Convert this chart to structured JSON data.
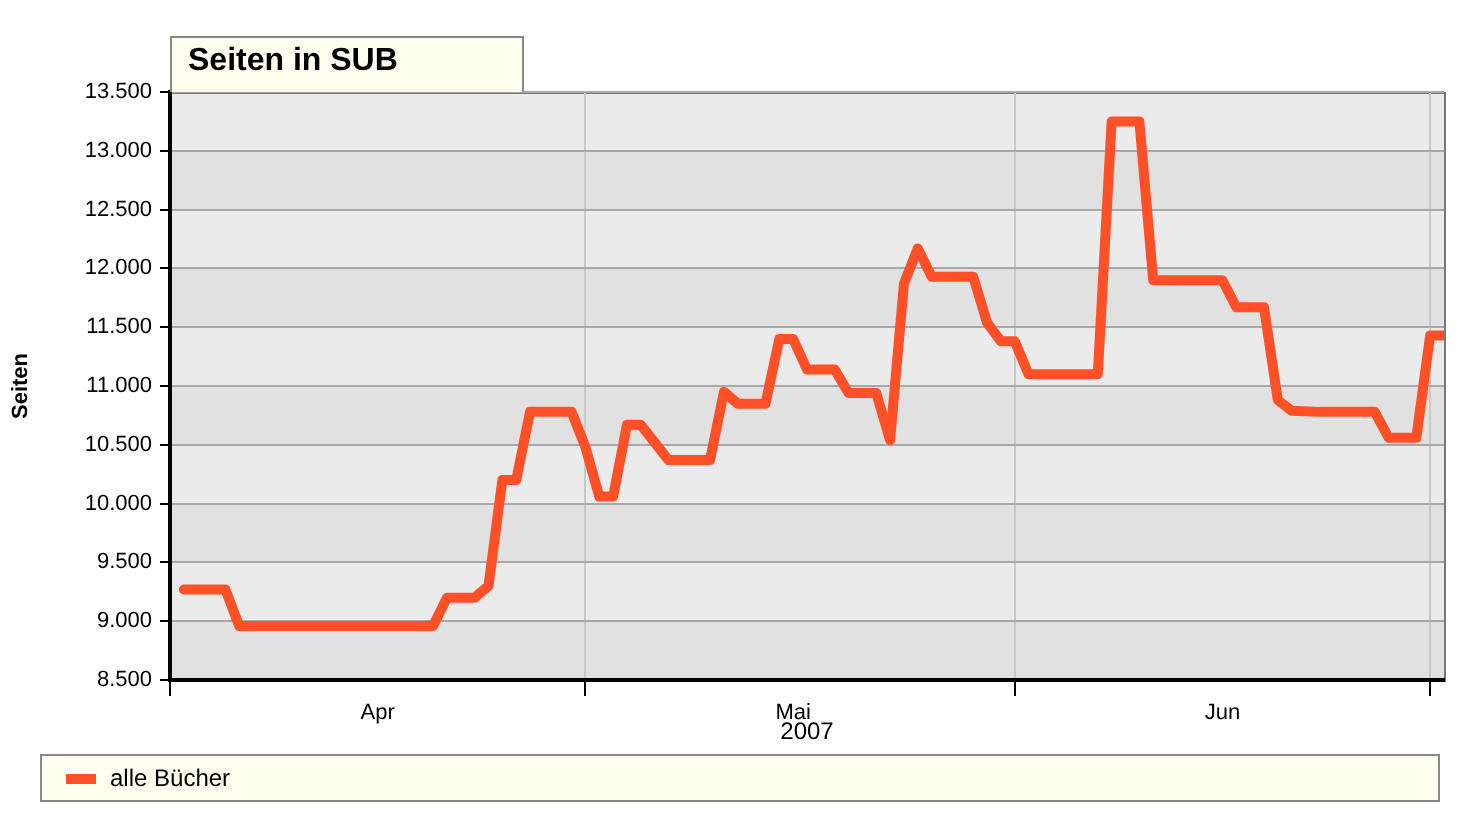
{
  "chart_data": {
    "type": "line",
    "title": "Seiten in SUB",
    "ylabel": "Seiten",
    "x": [
      "2007-04-02",
      "2007-04-05",
      "2007-04-06",
      "2007-04-20",
      "2007-04-21",
      "2007-04-23",
      "2007-04-24",
      "2007-04-25",
      "2007-04-26",
      "2007-04-27",
      "2007-04-30",
      "2007-05-01",
      "2007-05-02",
      "2007-05-03",
      "2007-05-04",
      "2007-05-05",
      "2007-05-07",
      "2007-05-10",
      "2007-05-11",
      "2007-05-12",
      "2007-05-14",
      "2007-05-15",
      "2007-05-16",
      "2007-05-17",
      "2007-05-19",
      "2007-05-20",
      "2007-05-22",
      "2007-05-23",
      "2007-05-24",
      "2007-05-25",
      "2007-05-26",
      "2007-05-29",
      "2007-05-30",
      "2007-05-31",
      "2007-06-01",
      "2007-06-02",
      "2007-06-07",
      "2007-06-08",
      "2007-06-10",
      "2007-06-11",
      "2007-06-16",
      "2007-06-17",
      "2007-06-19",
      "2007-06-20",
      "2007-06-21",
      "2007-06-23",
      "2007-06-27",
      "2007-06-28",
      "2007-06-30",
      "2007-07-01",
      "2007-07-02"
    ],
    "series": [
      {
        "name": "alle Bücher",
        "color": "#ff5028",
        "values": [
          9270,
          9270,
          8960,
          8960,
          9200,
          9200,
          9300,
          10200,
          10200,
          10780,
          10780,
          10480,
          10060,
          10060,
          10670,
          10670,
          10370,
          10370,
          10950,
          10850,
          10850,
          11400,
          11400,
          11140,
          11140,
          10940,
          10940,
          10540,
          11870,
          12170,
          11930,
          11930,
          11540,
          11380,
          11380,
          11100,
          11100,
          13250,
          13250,
          11900,
          11900,
          11670,
          11670,
          10880,
          10790,
          10780,
          10780,
          10560,
          10560,
          11430,
          11430
        ]
      }
    ],
    "xlim": [
      "2007-04-01",
      "2007-07-02"
    ],
    "xticks": [
      {
        "value": "2007-04-01",
        "label": null
      },
      {
        "value": "2007-04-16",
        "label": "Apr"
      },
      {
        "value": "2007-05-01",
        "label": null
      },
      {
        "value": "2007-05-16",
        "label": "Mai"
      },
      {
        "value": "2007-06-01",
        "label": null
      },
      {
        "value": "2007-06-16",
        "label": "Jun"
      },
      {
        "value": "2007-07-01",
        "label": null
      }
    ],
    "ylim": [
      8500,
      13500
    ],
    "yticks": [
      {
        "value": 8500,
        "label": "8.500"
      },
      {
        "value": 9000,
        "label": "9.000"
      },
      {
        "value": 9500,
        "label": "9.500"
      },
      {
        "value": 10000,
        "label": "10.000"
      },
      {
        "value": 10500,
        "label": "10.500"
      },
      {
        "value": 11000,
        "label": "11.000"
      },
      {
        "value": 11500,
        "label": "11.500"
      },
      {
        "value": 12000,
        "label": "12.000"
      },
      {
        "value": 12500,
        "label": "12.500"
      },
      {
        "value": 13000,
        "label": "13.000"
      },
      {
        "value": 13500,
        "label": "13.500"
      }
    ],
    "annotations": [
      "2007"
    ],
    "grid": true,
    "legend": "bottom",
    "marker": "none",
    "line_style": "solid"
  }
}
